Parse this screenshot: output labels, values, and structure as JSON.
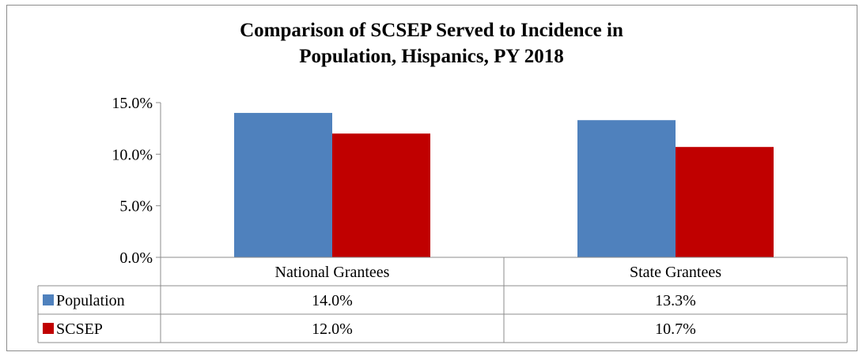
{
  "chart_data": {
    "type": "bar",
    "title_lines": [
      "Comparison of SCSEP Served to Incidence in",
      "Population, Hispanics, PY 2018"
    ],
    "categories": [
      "National Grantees",
      "State Grantees"
    ],
    "series": [
      {
        "name": "Population",
        "values": [
          14.0,
          13.3
        ],
        "color": "#4f81bd",
        "labels": [
          "14.0%",
          "13.3%"
        ]
      },
      {
        "name": "SCSEP",
        "values": [
          12.0,
          10.7
        ],
        "color": "#c00000",
        "labels": [
          "12.0%",
          "10.7%"
        ]
      }
    ],
    "ylim": [
      0,
      15
    ],
    "yticks": [
      0,
      5,
      10,
      15
    ],
    "ytick_labels": [
      "0.0%",
      "5.0%",
      "10.0%",
      "15.0%"
    ],
    "grid": false,
    "legend": "data-table",
    "xlabel": "",
    "ylabel": ""
  }
}
